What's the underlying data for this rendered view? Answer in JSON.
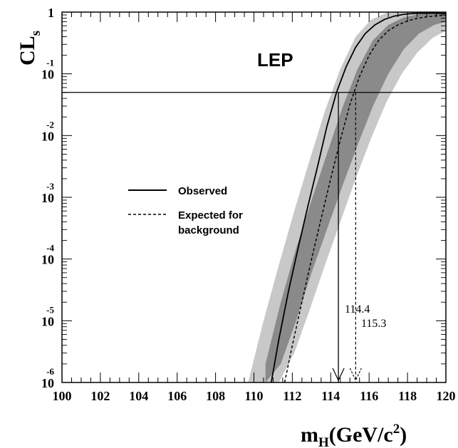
{
  "chart_data": {
    "type": "line",
    "title": "LEP",
    "ylabel": {
      "main": "CL",
      "sub": "s"
    },
    "xlabel": {
      "pre": "m",
      "sub": "H",
      "mid": "(GeV/c",
      "sup": "2",
      "post": ")"
    },
    "xlim": [
      100,
      120
    ],
    "ylim_log10": [
      -6,
      0
    ],
    "y_scale": "log",
    "x_ticks": [
      "100",
      "102",
      "104",
      "106",
      "108",
      "110",
      "112",
      "114",
      "116",
      "118",
      "120"
    ],
    "y_ticks": [
      {
        "base": "1",
        "exp": ""
      },
      {
        "base": "10",
        "exp": "-1"
      },
      {
        "base": "10",
        "exp": "-2"
      },
      {
        "base": "10",
        "exp": "-3"
      },
      {
        "base": "10",
        "exp": "-4"
      },
      {
        "base": "10",
        "exp": "-5"
      },
      {
        "base": "10",
        "exp": "-6"
      }
    ],
    "reference_line_cls": 0.05,
    "legend": {
      "placement": "center-left",
      "observed": "Observed",
      "expected_line1": "Expected for",
      "expected_line2": "background"
    },
    "annotations": {
      "observed_limit": "114.4",
      "expected_limit": "115.3"
    },
    "colors": {
      "band_outer": "#c8c8c8",
      "band_inner": "#8a8a8a",
      "line": "#000000"
    },
    "series": [
      {
        "name": "Observed",
        "style": "solid",
        "x": [
          110.9,
          111.3,
          111.8,
          112.3,
          112.8,
          113.3,
          113.8,
          114.3,
          114.8,
          115.3,
          115.8,
          116.3,
          116.8,
          117.3,
          117.8,
          118.3,
          118.8,
          119.3,
          119.8,
          120.0
        ],
        "y": [
          1e-06,
          5e-06,
          3e-05,
          0.00015,
          0.0007,
          0.003,
          0.014,
          0.05,
          0.13,
          0.27,
          0.45,
          0.62,
          0.76,
          0.86,
          0.92,
          0.95,
          0.96,
          0.96,
          0.95,
          0.95
        ]
      },
      {
        "name": "Expected for background",
        "style": "dashed",
        "x": [
          111.6,
          112.0,
          112.5,
          113.0,
          113.5,
          114.0,
          114.5,
          115.0,
          115.5,
          116.0,
          116.5,
          117.0,
          117.5,
          118.0,
          118.5,
          119.0,
          119.5,
          120.0
        ],
        "y": [
          1e-06,
          4e-06,
          2e-05,
          0.0001,
          0.00045,
          0.002,
          0.0085,
          0.032,
          0.09,
          0.2,
          0.35,
          0.5,
          0.62,
          0.72,
          0.79,
          0.84,
          0.87,
          0.89
        ]
      }
    ],
    "bands": [
      {
        "name": "outer",
        "x": [
          109.7,
          110.5,
          111.3,
          112.1,
          112.9,
          113.7,
          114.5,
          115.3,
          116.1,
          116.9,
          117.7,
          118.5,
          119.3,
          120.0
        ],
        "lower": [
          1e-06,
          1e-06,
          1e-06,
          3e-06,
          1.5e-05,
          8e-05,
          0.0004,
          0.002,
          0.009,
          0.035,
          0.1,
          0.22,
          0.38,
          0.5
        ],
        "upper": [
          1e-06,
          1e-05,
          8e-05,
          0.0006,
          0.004,
          0.025,
          0.12,
          0.4,
          0.75,
          0.97,
          1.0,
          1.0,
          1.0,
          1.0
        ]
      },
      {
        "name": "inner",
        "x": [
          110.6,
          111.4,
          112.2,
          113.0,
          113.8,
          114.6,
          115.4,
          116.2,
          117.0,
          117.8,
          118.6,
          119.4,
          120.0
        ],
        "lower": [
          1e-06,
          2e-06,
          1e-05,
          6e-05,
          0.0003,
          0.0015,
          0.007,
          0.03,
          0.1,
          0.25,
          0.45,
          0.62,
          0.7
        ],
        "upper": [
          2e-06,
          2e-05,
          0.00015,
          0.0009,
          0.005,
          0.028,
          0.12,
          0.35,
          0.62,
          0.82,
          0.93,
          0.98,
          1.0
        ]
      }
    ]
  }
}
